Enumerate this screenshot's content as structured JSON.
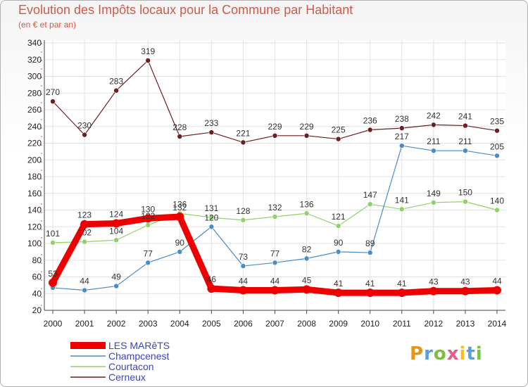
{
  "header": {
    "title": "Evolution des Impôts locaux pour la Commune par Habitant",
    "subtitle": "(en € et par an)"
  },
  "logo": {
    "text": "Proxiti",
    "colors": [
      "#e8941a",
      "#5aa0d8",
      "#7cc043",
      "#e85a8a",
      "#f2c21a",
      "#5aa0d8",
      "#7cc043"
    ]
  },
  "chart_data": {
    "type": "line",
    "x": [
      2000,
      2001,
      2002,
      2003,
      2004,
      2005,
      2006,
      2007,
      2008,
      2009,
      2010,
      2011,
      2012,
      2013,
      2014
    ],
    "ylim": [
      20,
      340
    ],
    "yticks": [
      20,
      40,
      60,
      80,
      100,
      120,
      140,
      160,
      180,
      200,
      220,
      240,
      260,
      280,
      300,
      320,
      340
    ],
    "grid": true,
    "legend_position": "bottom-left",
    "series": [
      {
        "name": "Cerneux",
        "color": "#6b1f1f",
        "width": 1.2,
        "values": [
          270,
          230,
          283,
          319,
          228,
          233,
          221,
          229,
          229,
          225,
          236,
          238,
          242,
          241,
          235
        ]
      },
      {
        "name": "Courtacon",
        "color": "#8fd06a",
        "width": 1.2,
        "values": [
          101,
          102,
          104,
          122,
          136,
          131,
          128,
          132,
          136,
          121,
          147,
          141,
          149,
          150,
          140
        ]
      },
      {
        "name": "Champcenest",
        "color": "#4a8cc4",
        "width": 1.2,
        "values": [
          47,
          44,
          49,
          77,
          90,
          120,
          73,
          77,
          82,
          90,
          89,
          217,
          211,
          211,
          205
        ]
      },
      {
        "name": "LES MARêTS",
        "color": "#ee0000",
        "width": 9,
        "values": [
          53,
          123,
          124,
          130,
          132,
          46,
          44,
          44,
          45,
          41,
          41,
          41,
          43,
          43,
          44
        ]
      }
    ],
    "value_labels": {
      "Cerneux": [
        "270",
        "230",
        "283",
        "319",
        "228",
        "233",
        "221",
        "229",
        "229",
        "225",
        "236",
        "238",
        "242",
        "241",
        "235"
      ],
      "Courtacon": [
        "101",
        "102",
        "104",
        "122",
        "136",
        "131",
        "128",
        "132",
        "136",
        "121",
        "147",
        "141",
        "149",
        "150",
        "140"
      ],
      "Champcenest": [
        "",
        "44",
        "49",
        "77",
        "90",
        "120",
        "73",
        "77",
        "82",
        "90",
        "89",
        "217",
        "211",
        "211",
        "205"
      ],
      "LES MARêTS": [
        "53",
        "123",
        "124",
        "130",
        "132",
        "46",
        "44",
        "44",
        "45",
        "41",
        "41",
        "41",
        "43",
        "43",
        "44"
      ]
    },
    "legend_order": [
      "LES MARêTS",
      "Champcenest",
      "Courtacon",
      "Cerneux"
    ]
  }
}
